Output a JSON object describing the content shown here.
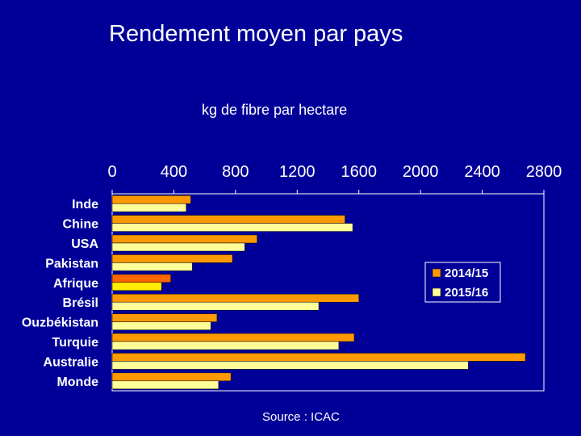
{
  "title": "Rendement moyen par pays",
  "subtitle": "kg  de fibre par hectare",
  "source": "Source : ICAC",
  "colors": {
    "background": "#000099",
    "series_2014": "#ff9900",
    "series_2015": "#ffff99",
    "afrique_2014": "#ff6600",
    "afrique_2015": "#ffee00"
  },
  "chart_data": {
    "type": "bar",
    "orientation": "horizontal",
    "categories": [
      "Inde",
      "Chine",
      "USA",
      "Pakistan",
      "Afrique",
      "Brésil",
      "Ouzbékistan",
      "Turquie",
      "Australie",
      "Monde"
    ],
    "xlim": [
      0,
      2800
    ],
    "xticks": [
      "0",
      "400",
      "800",
      "1200",
      "1600",
      "2000",
      "2400",
      "2800"
    ],
    "xtick_values": [
      0,
      400,
      800,
      1200,
      1600,
      2000,
      2400,
      2800
    ],
    "series": [
      {
        "name": "2014/15",
        "values": [
          510,
          1510,
          940,
          780,
          380,
          1600,
          680,
          1570,
          2680,
          770
        ]
      },
      {
        "name": "2015/16",
        "values": [
          480,
          1560,
          860,
          520,
          320,
          1340,
          640,
          1470,
          2310,
          690
        ]
      }
    ],
    "legend_position": "right",
    "grid": false
  }
}
